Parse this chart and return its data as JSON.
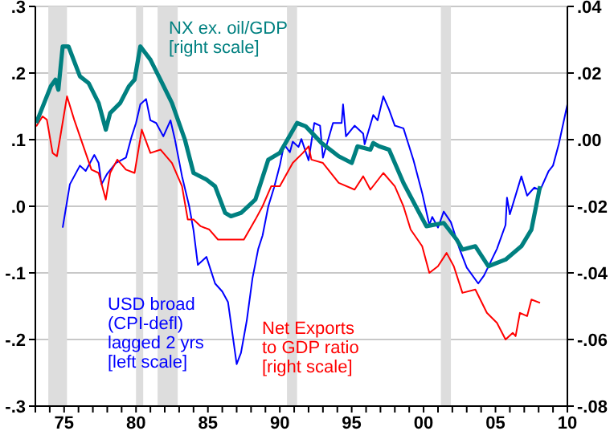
{
  "chart_data": {
    "type": "line",
    "xlim": [
      1973,
      2010
    ],
    "xticks": [
      {
        "value": 1973,
        "label": null
      },
      {
        "value": 1974,
        "label": null
      },
      {
        "value": 1975,
        "label": "75"
      },
      {
        "value": 1976,
        "label": null
      },
      {
        "value": 1977,
        "label": null
      },
      {
        "value": 1978,
        "label": null
      },
      {
        "value": 1979,
        "label": null
      },
      {
        "value": 1980,
        "label": "80"
      },
      {
        "value": 1981,
        "label": null
      },
      {
        "value": 1982,
        "label": null
      },
      {
        "value": 1983,
        "label": null
      },
      {
        "value": 1984,
        "label": null
      },
      {
        "value": 1985,
        "label": "85"
      },
      {
        "value": 1986,
        "label": null
      },
      {
        "value": 1987,
        "label": null
      },
      {
        "value": 1988,
        "label": null
      },
      {
        "value": 1989,
        "label": null
      },
      {
        "value": 1990,
        "label": "90"
      },
      {
        "value": 1991,
        "label": null
      },
      {
        "value": 1992,
        "label": null
      },
      {
        "value": 1993,
        "label": null
      },
      {
        "value": 1994,
        "label": null
      },
      {
        "value": 1995,
        "label": "95"
      },
      {
        "value": 1996,
        "label": null
      },
      {
        "value": 1997,
        "label": null
      },
      {
        "value": 1998,
        "label": null
      },
      {
        "value": 1999,
        "label": null
      },
      {
        "value": 2000,
        "label": "00"
      },
      {
        "value": 2001,
        "label": null
      },
      {
        "value": 2002,
        "label": null
      },
      {
        "value": 2003,
        "label": null
      },
      {
        "value": 2004,
        "label": null
      },
      {
        "value": 2005,
        "label": "05"
      },
      {
        "value": 2006,
        "label": null
      },
      {
        "value": 2007,
        "label": null
      },
      {
        "value": 2008,
        "label": null
      },
      {
        "value": 2009,
        "label": null
      },
      {
        "value": 2010,
        "label": "10"
      }
    ],
    "ylim": [
      -0.3,
      0.3
    ],
    "yticks": [
      {
        "value": -0.3,
        "label": "-.3"
      },
      {
        "value": -0.2,
        "label": "-.2"
      },
      {
        "value": -0.1,
        "label": "-.1"
      },
      {
        "value": 0,
        "label": ".0"
      },
      {
        "value": 0.1,
        "label": ".1"
      },
      {
        "value": 0.2,
        "label": ".2"
      },
      {
        "value": 0.3,
        "label": ".3"
      }
    ],
    "y2lim": [
      -0.08,
      0.04
    ],
    "y2ticks": [
      {
        "value": -0.08,
        "label": "-.08"
      },
      {
        "value": -0.06,
        "label": "-.06"
      },
      {
        "value": -0.04,
        "label": "-.04"
      },
      {
        "value": -0.02,
        "label": "-.02"
      },
      {
        "value": 0,
        "label": ".00"
      },
      {
        "value": 0.02,
        "label": ".02"
      },
      {
        "value": 0.04,
        "label": ".04"
      }
    ],
    "grid": "y",
    "bands": [
      {
        "axis": "x",
        "from": 1973.9,
        "to": 1975.2,
        "color": "#dddddd"
      },
      {
        "axis": "x",
        "from": 1980.0,
        "to": 1980.5,
        "color": "#dddddd"
      },
      {
        "axis": "x",
        "from": 1981.5,
        "to": 1982.9,
        "color": "#dddddd"
      },
      {
        "axis": "x",
        "from": 1990.5,
        "to": 1991.2,
        "color": "#dddddd"
      },
      {
        "axis": "x",
        "from": 2001.2,
        "to": 2001.9,
        "color": "#dddddd"
      }
    ],
    "series": [
      {
        "name": "USD broad\n(CPI-defl)\nlagged 2 yrs\n[left scale]",
        "color": "#0000ff",
        "x": [
          1974.9,
          1975.4,
          1975.7,
          1976.1,
          1976.5,
          1977.1,
          1977.4,
          1977.6,
          1978.0,
          1978.6,
          1979.3,
          1979.7,
          1980.0,
          1980.3,
          1980.7,
          1981.0,
          1981.4,
          1981.9,
          1982.4,
          1982.7,
          1983.2,
          1983.7,
          1984.0,
          1984.3,
          1984.9,
          1985.5,
          1986.0,
          1986.4,
          1987.0,
          1987.3,
          1987.7,
          1988.1,
          1988.5,
          1988.8,
          1989.2,
          1989.6,
          1990.0,
          1990.3,
          1990.7,
          1990.9,
          1991.3,
          1991.5,
          1992.0,
          1992.4,
          1992.8,
          1993.0,
          1993.7,
          1994.3,
          1994.4,
          1994.6,
          1995.2,
          1995.8,
          1995.9,
          1996.5,
          1996.8,
          1997.2,
          1997.6,
          1998.0,
          1998.6,
          1999.3,
          1999.9,
          2000.4,
          2000.6,
          2001.0,
          2001.4,
          2001.9,
          2002.5,
          2003.0,
          2003.8,
          2004.2,
          2005.1,
          2005.7,
          2005.8,
          2006.0,
          2006.8,
          2007.2,
          2007.7,
          2008.1,
          2008.7,
          2009.0,
          2009.4,
          2010.0
        ],
        "values": [
          -0.032,
          0.033,
          0.045,
          0.061,
          0.053,
          0.077,
          0.065,
          0.033,
          0.049,
          0.065,
          0.073,
          0.105,
          0.125,
          0.153,
          0.161,
          0.129,
          0.125,
          0.105,
          0.129,
          0.101,
          0.045,
          0.0,
          -0.036,
          -0.088,
          -0.076,
          -0.116,
          -0.128,
          -0.144,
          -0.237,
          -0.22,
          -0.172,
          -0.108,
          -0.064,
          -0.044,
          0.0,
          0.028,
          0.061,
          0.093,
          0.081,
          0.097,
          0.089,
          0.101,
          0.069,
          0.125,
          0.121,
          0.073,
          0.125,
          0.125,
          0.153,
          0.105,
          0.121,
          0.109,
          0.093,
          0.137,
          0.129,
          0.165,
          0.145,
          0.121,
          0.117,
          0.069,
          0.02,
          -0.028,
          -0.016,
          -0.032,
          -0.008,
          -0.024,
          -0.064,
          -0.092,
          -0.116,
          -0.104,
          -0.064,
          -0.028,
          0.013,
          -0.012,
          0.045,
          0.016,
          0.028,
          0.024,
          0.053,
          0.061,
          0.093,
          0.153
        ]
      },
      {
        "name": "Net Exports\nto GDP ratio\n[right scale]",
        "color": "#ff0000",
        "axis": "y2",
        "x": [
          1973.06,
          1973.5,
          1973.8,
          1974.2,
          1974.5,
          1974.7,
          1975.2,
          1975.7,
          1976.1,
          1976.9,
          1977.4,
          1977.9,
          1978.2,
          1978.7,
          1979.3,
          1979.9,
          1980.4,
          1981.0,
          1981.7,
          1982.5,
          1983.2,
          1983.6,
          1984.0,
          1984.5,
          1985.1,
          1985.7,
          1986.2,
          1987.0,
          1987.5,
          1987.9,
          1988.3,
          1988.8,
          1989.4,
          1990.0,
          1990.9,
          1991.6,
          1992.0,
          1992.2,
          1993.0,
          1994.1,
          1995.2,
          1995.8,
          1996.3,
          1997.2,
          1998.0,
          1998.6,
          1999.1,
          1999.9,
          2000.4,
          2001.0,
          2001.6,
          2002.1,
          2002.7,
          2003.6,
          2004.4,
          2005.1,
          2005.7,
          2006.2,
          2006.4,
          2006.7,
          2007.2,
          2007.5,
          2008.1
        ],
        "values": [
          0.004,
          0.007,
          0.006,
          -0.004,
          -0.005,
          0.0,
          0.013,
          0.006,
          0.001,
          -0.009,
          -0.01,
          -0.018,
          -0.01,
          -0.006,
          -0.009,
          -0.01,
          0.003,
          -0.004,
          -0.003,
          -0.007,
          -0.014,
          -0.024,
          -0.024,
          -0.026,
          -0.027,
          -0.03,
          -0.03,
          -0.03,
          -0.03,
          -0.027,
          -0.024,
          -0.02,
          -0.014,
          -0.014,
          -0.007,
          -0.004,
          -0.002,
          -0.006,
          -0.007,
          -0.013,
          -0.015,
          -0.011,
          -0.015,
          -0.01,
          -0.014,
          -0.02,
          -0.027,
          -0.032,
          -0.04,
          -0.038,
          -0.034,
          -0.038,
          -0.046,
          -0.045,
          -0.052,
          -0.055,
          -0.06,
          -0.058,
          -0.059,
          -0.052,
          -0.053,
          -0.048,
          -0.049
        ]
      },
      {
        "name": "NX ex. oil/GDP\n[right scale]",
        "color": "#008080",
        "axis": "y2",
        "x": [
          1973.06,
          1974.07,
          1974.4,
          1974.6,
          1974.9,
          1975.3,
          1976.1,
          1976.7,
          1977.4,
          1977.9,
          1978.2,
          1978.9,
          1979.5,
          1979.9,
          1980.3,
          1981.0,
          1981.7,
          1982.5,
          1983.4,
          1984.0,
          1984.9,
          1985.5,
          1986.2,
          1986.6,
          1987.3,
          1988.3,
          1989.2,
          1990.0,
          1991.2,
          1991.8,
          1992.9,
          1994.1,
          1995.0,
          1995.4,
          1996.3,
          1996.5,
          1996.9,
          1997.6,
          1998.6,
          1999.7,
          2000.2,
          2001.4,
          2002.3,
          2002.7,
          2003.6,
          2004.5,
          2005.7,
          2006.8,
          2007.5,
          2008.1
        ],
        "values": [
          0.005,
          0.016,
          0.018,
          0.015,
          0.028,
          0.028,
          0.019,
          0.017,
          0.011,
          0.003,
          0.008,
          0.011,
          0.016,
          0.018,
          0.028,
          0.024,
          0.018,
          0.011,
          0.0,
          -0.01,
          -0.012,
          -0.014,
          -0.022,
          -0.023,
          -0.022,
          -0.018,
          -0.006,
          -0.004,
          0.005,
          0.004,
          -0.001,
          -0.005,
          -0.007,
          -0.002,
          -0.003,
          -0.001,
          -0.002,
          -0.003,
          -0.013,
          -0.022,
          -0.026,
          -0.025,
          -0.03,
          -0.033,
          -0.032,
          -0.038,
          -0.036,
          -0.032,
          -0.027,
          -0.014
        ]
      }
    ]
  }
}
